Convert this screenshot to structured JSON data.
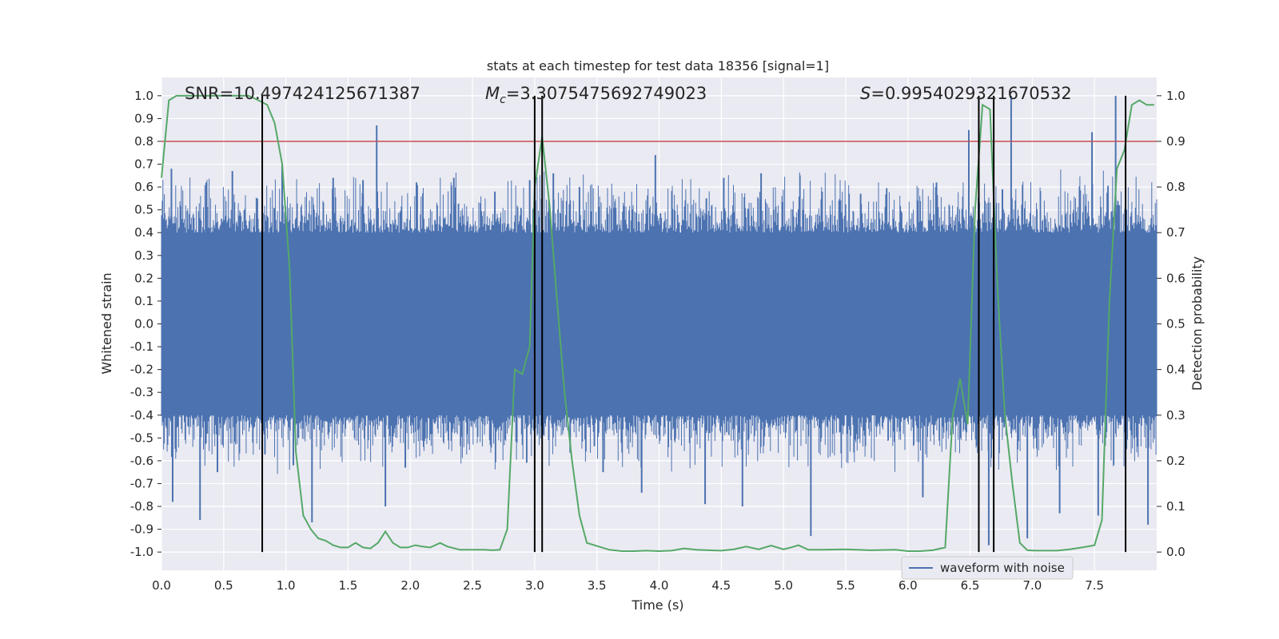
{
  "chart_data": {
    "type": "line",
    "title": "stats at each timestep for test data 18356 [signal=1]",
    "xlabel": "Time (s)",
    "ylabel_left": "Whitened strain",
    "ylabel_right": "Detection probability",
    "xlim": [
      0.0,
      8.0
    ],
    "ylim_left": [
      -1.08,
      1.08
    ],
    "ylim_right": [
      -0.04,
      1.04
    ],
    "x_ticks": [
      "0.0",
      "0.5",
      "1.0",
      "1.5",
      "2.0",
      "2.5",
      "3.0",
      "3.5",
      "4.0",
      "4.5",
      "5.0",
      "5.5",
      "6.0",
      "6.5",
      "7.0",
      "7.5"
    ],
    "y_ticks_left": [
      "1.0",
      "0.9",
      "0.8",
      "0.7",
      "0.6",
      "0.5",
      "0.4",
      "0.3",
      "0.2",
      "0.1",
      "0.0",
      "-0.1",
      "-0.2",
      "-0.3",
      "-0.4",
      "-0.5",
      "-0.6",
      "-0.7",
      "-0.8",
      "-0.9",
      "-1.0"
    ],
    "y_ticks_right": [
      "1.0",
      "0.9",
      "0.8",
      "0.7",
      "0.6",
      "0.5",
      "0.4",
      "0.3",
      "0.2",
      "0.1",
      "0.0"
    ],
    "grid": true,
    "legend": {
      "position": "lower-right",
      "entries": [
        "waveform with noise"
      ]
    },
    "annotations": {
      "snr": "SNR=10.497424125671387",
      "mc_symbol": "M",
      "mc_sub": "c",
      "mc_value": "=3.3075475692749023",
      "s_symbol": "S",
      "s_value": "=0.9954029321670532"
    },
    "threshold": {
      "axis": "left",
      "value": 0.8,
      "color": "#c44e52"
    },
    "vertical_lines": [
      0.81,
      3.0,
      3.06,
      6.57,
      6.69,
      7.75
    ],
    "vertical_line_range_right": [
      0.0,
      1.0
    ],
    "series": [
      {
        "name": "waveform with noise",
        "axis": "left",
        "color": "#4c72b0",
        "x_range": [
          0.0,
          8.0
        ],
        "band": 0.4,
        "peaks": [
          [
            0.08,
            0.68
          ],
          [
            0.09,
            -0.78
          ],
          [
            0.31,
            -0.86
          ],
          [
            0.36,
            0.62
          ],
          [
            0.45,
            -0.65
          ],
          [
            0.57,
            0.67
          ],
          [
            0.77,
            0.55
          ],
          [
            0.97,
            0.7
          ],
          [
            1.06,
            -0.62
          ],
          [
            1.21,
            -0.87
          ],
          [
            1.38,
            0.64
          ],
          [
            1.62,
            0.63
          ],
          [
            1.73,
            0.87
          ],
          [
            1.8,
            -0.8
          ],
          [
            2.05,
            0.62
          ],
          [
            2.35,
            0.64
          ],
          [
            2.68,
            0.58
          ],
          [
            2.96,
            0.63
          ],
          [
            3.15,
            0.66
          ],
          [
            3.55,
            -0.65
          ],
          [
            3.86,
            -0.74
          ],
          [
            3.97,
            0.74
          ],
          [
            4.38,
            0.55
          ],
          [
            4.37,
            -0.79
          ],
          [
            4.82,
            0.66
          ],
          [
            4.67,
            -0.8
          ],
          [
            5.22,
            -0.93
          ],
          [
            5.62,
            0.57
          ],
          [
            6.08,
            0.54
          ],
          [
            6.12,
            -0.76
          ],
          [
            6.49,
            0.85
          ],
          [
            6.65,
            -0.97
          ],
          [
            6.76,
            0.59
          ],
          [
            6.83,
            1.0
          ],
          [
            6.96,
            -0.94
          ],
          [
            7.22,
            -0.83
          ],
          [
            7.48,
            0.84
          ],
          [
            7.67,
            1.0
          ],
          [
            7.53,
            -0.84
          ],
          [
            7.93,
            -0.88
          ],
          [
            6.23,
            0.62
          ],
          [
            5.31,
            0.58
          ],
          [
            4.52,
            0.64
          ],
          [
            3.36,
            0.6
          ],
          [
            1.96,
            -0.63
          ]
        ]
      },
      {
        "name": "detection probability",
        "axis": "right",
        "color": "#55a868",
        "x": [
          0.0,
          0.06,
          0.12,
          0.2,
          0.3,
          0.4,
          0.5,
          0.6,
          0.7,
          0.78,
          0.85,
          0.91,
          0.97,
          1.03,
          1.08,
          1.14,
          1.2,
          1.26,
          1.32,
          1.38,
          1.44,
          1.5,
          1.56,
          1.62,
          1.68,
          1.74,
          1.8,
          1.86,
          1.92,
          1.98,
          2.04,
          2.1,
          2.16,
          2.24,
          2.3,
          2.4,
          2.5,
          2.6,
          2.66,
          2.72,
          2.78,
          2.84,
          2.9,
          2.96,
          3.0,
          3.06,
          3.12,
          3.18,
          3.24,
          3.3,
          3.36,
          3.42,
          3.48,
          3.54,
          3.6,
          3.7,
          3.8,
          3.9,
          4.0,
          4.1,
          4.2,
          4.3,
          4.4,
          4.5,
          4.6,
          4.7,
          4.8,
          4.9,
          5.0,
          5.06,
          5.12,
          5.2,
          5.3,
          5.5,
          5.7,
          5.9,
          6.0,
          6.1,
          6.2,
          6.3,
          6.36,
          6.42,
          6.48,
          6.54,
          6.6,
          6.66,
          6.72,
          6.78,
          6.84,
          6.9,
          6.96,
          7.02,
          7.1,
          7.2,
          7.3,
          7.4,
          7.5,
          7.56,
          7.62,
          7.68,
          7.74,
          7.8,
          7.86,
          7.92,
          7.98
        ],
        "values": [
          0.82,
          0.99,
          1.0,
          1.0,
          1.0,
          1.0,
          1.0,
          1.0,
          1.0,
          0.99,
          0.98,
          0.94,
          0.85,
          0.62,
          0.22,
          0.08,
          0.05,
          0.03,
          0.025,
          0.015,
          0.01,
          0.01,
          0.02,
          0.01,
          0.008,
          0.02,
          0.045,
          0.02,
          0.01,
          0.01,
          0.015,
          0.012,
          0.01,
          0.02,
          0.012,
          0.005,
          0.005,
          0.005,
          0.004,
          0.005,
          0.05,
          0.4,
          0.39,
          0.45,
          0.8,
          0.91,
          0.76,
          0.55,
          0.35,
          0.2,
          0.08,
          0.02,
          0.015,
          0.01,
          0.005,
          0.002,
          0.002,
          0.003,
          0.002,
          0.003,
          0.008,
          0.005,
          0.004,
          0.003,
          0.006,
          0.012,
          0.006,
          0.014,
          0.006,
          0.01,
          0.015,
          0.005,
          0.005,
          0.006,
          0.004,
          0.005,
          0.002,
          0.002,
          0.004,
          0.01,
          0.3,
          0.38,
          0.28,
          0.75,
          0.98,
          0.97,
          0.58,
          0.3,
          0.15,
          0.02,
          0.004,
          0.003,
          0.003,
          0.003,
          0.006,
          0.01,
          0.015,
          0.07,
          0.55,
          0.84,
          0.88,
          0.98,
          0.99,
          0.98,
          0.98
        ]
      }
    ]
  }
}
